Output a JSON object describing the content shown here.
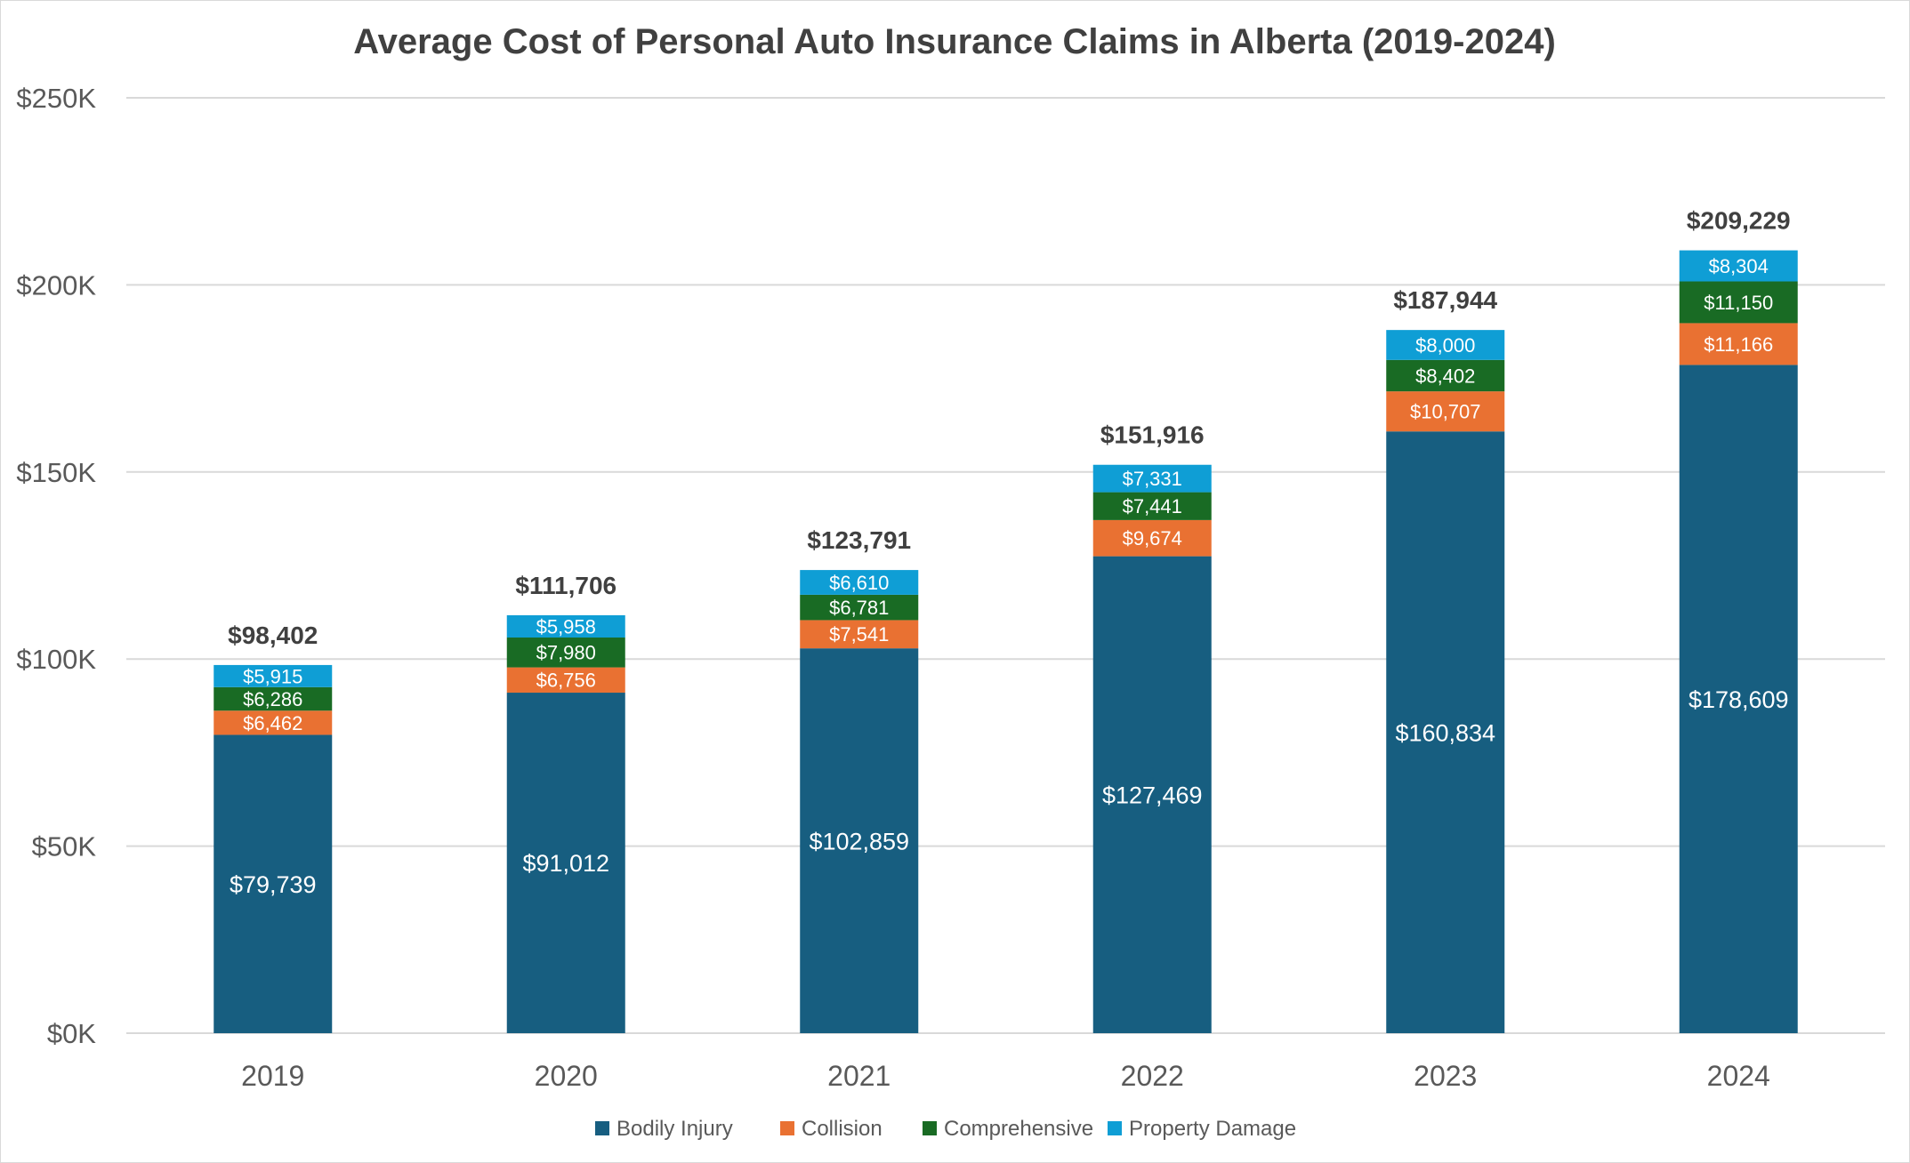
{
  "chart_data": {
    "type": "bar",
    "stacked": true,
    "title": "Average Cost of Personal Auto Insurance Claims in Alberta (2019-2024)",
    "xlabel": "",
    "ylabel": "",
    "ylim": [
      0,
      250000
    ],
    "yticks": [
      0,
      50000,
      100000,
      150000,
      200000,
      250000
    ],
    "ytick_labels": [
      "$0K",
      "$50K",
      "$100K",
      "$150K",
      "$200K",
      "$250K"
    ],
    "grid": true,
    "legend_position": "bottom",
    "categories": [
      "2019",
      "2020",
      "2021",
      "2022",
      "2023",
      "2024"
    ],
    "series": [
      {
        "name": "Bodily Injury",
        "color": "#175E80",
        "values": [
          79739,
          91012,
          102859,
          127469,
          160834,
          178609
        ],
        "labels": [
          "$79,739",
          "$91,012",
          "$102,859",
          "$127,469",
          "$160,834",
          "$178,609"
        ]
      },
      {
        "name": "Collision",
        "color": "#E97132",
        "values": [
          6462,
          6756,
          7541,
          9674,
          10707,
          11166
        ],
        "labels": [
          "$6,462",
          "$6,756",
          "$7,541",
          "$9,674",
          "$10,707",
          "$11,166"
        ]
      },
      {
        "name": "Comprehensive",
        "color": "#196B24",
        "values": [
          6286,
          7980,
          6781,
          7441,
          8402,
          11150
        ],
        "labels": [
          "$6,286",
          "$7,980",
          "$6,781",
          "$7,441",
          "$8,402",
          "$11,150"
        ]
      },
      {
        "name": "Property Damage",
        "color": "#0F9ED5",
        "values": [
          5915,
          5958,
          6610,
          7331,
          8000,
          8304
        ],
        "labels": [
          "$5,915",
          "$5,958",
          "$6,610",
          "$7,331",
          "$8,000",
          "$8,304"
        ]
      }
    ],
    "totals": [
      98402,
      111706,
      123791,
      151916,
      187944,
      209229
    ],
    "total_labels": [
      "$98,402",
      "$111,706",
      "$123,791",
      "$151,916",
      "$187,944",
      "$209,229"
    ]
  }
}
